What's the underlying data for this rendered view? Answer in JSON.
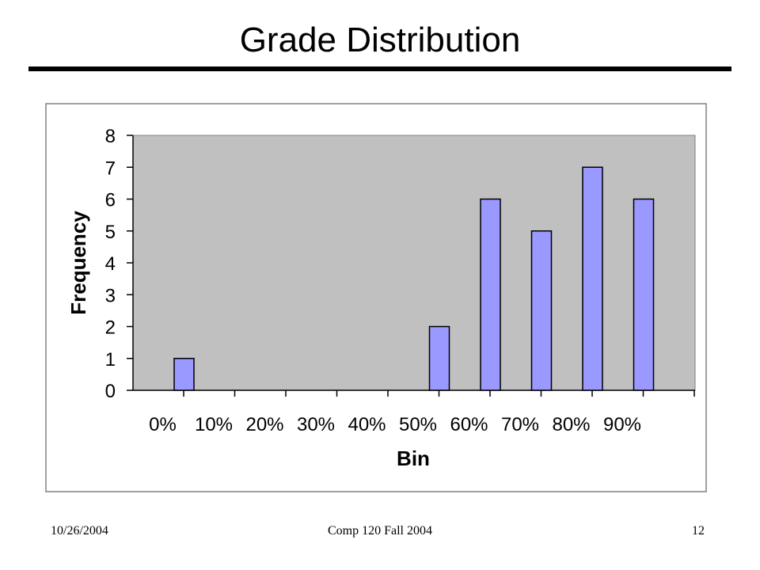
{
  "slide": {
    "title": "Grade Distribution"
  },
  "footer": {
    "date": "10/26/2004",
    "course": "Comp 120 Fall 2004",
    "page": "12"
  },
  "chart_data": {
    "type": "bar",
    "categories": [
      "0%",
      "10%",
      "20%",
      "30%",
      "40%",
      "50%",
      "60%",
      "70%",
      "80%",
      "90%"
    ],
    "values": [
      1,
      0,
      0,
      0,
      0,
      2,
      6,
      5,
      7,
      6
    ],
    "title": "",
    "xlabel": "Bin",
    "ylabel": "Frequency",
    "ylim": [
      0,
      8
    ],
    "yticks": [
      0,
      1,
      2,
      3,
      4,
      5,
      6,
      7,
      8
    ],
    "grid": false,
    "legend": "none",
    "colors": {
      "bar_fill": "#9999ff",
      "plot_background": "#c0c0c0"
    }
  }
}
